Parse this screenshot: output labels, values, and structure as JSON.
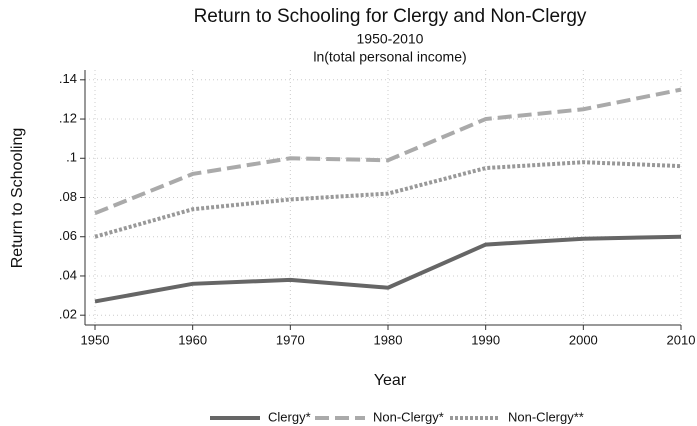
{
  "chart_data": {
    "type": "line",
    "title": "Return to Schooling for Clergy and Non-Clergy",
    "subtitle": [
      "1950-2010",
      "ln(total personal income)"
    ],
    "x_label": "Year",
    "y_label": "Return to Schooling",
    "x": [
      1950,
      1960,
      1970,
      1980,
      1990,
      2000,
      2010
    ],
    "series": [
      {
        "name": "Clergy*",
        "color": "#666666",
        "style": "solid",
        "values": [
          0.027,
          0.036,
          0.038,
          0.034,
          0.056,
          0.059,
          0.06
        ]
      },
      {
        "name": "Non-Clergy*",
        "color": "#aaaaaa",
        "style": "dashed",
        "values": [
          0.072,
          0.092,
          0.1,
          0.099,
          0.12,
          0.125,
          0.135
        ]
      },
      {
        "name": "Non-Clergy**",
        "color": "#999999",
        "style": "dotted",
        "values": [
          0.06,
          0.074,
          0.079,
          0.082,
          0.095,
          0.098,
          0.096
        ]
      }
    ],
    "xlim": [
      1950,
      2010
    ],
    "xticks": [
      1950,
      1960,
      1970,
      1980,
      1990,
      2000,
      2010
    ],
    "ylim": [
      0.015,
      0.145
    ],
    "yticks": [
      {
        "value": 0.02,
        "label": ".02"
      },
      {
        "value": 0.04,
        "label": ".04"
      },
      {
        "value": 0.06,
        "label": ".06"
      },
      {
        "value": 0.08,
        "label": ".08"
      },
      {
        "value": 0.1,
        "label": ".1"
      },
      {
        "value": 0.12,
        "label": ".12"
      },
      {
        "value": 0.14,
        "label": ".14"
      }
    ],
    "grid": true,
    "legend": "bottom"
  }
}
